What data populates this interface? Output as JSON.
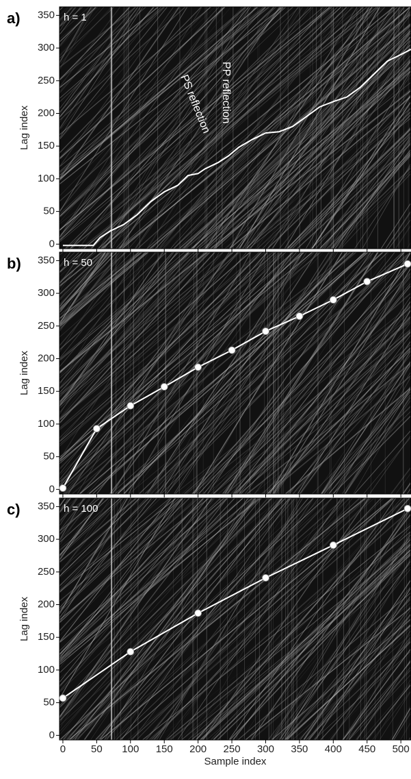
{
  "chart_data": [
    {
      "type": "line",
      "panel_label": "a)",
      "inset_label": "h = 1",
      "ylabel": "Lag index",
      "annotations": [
        "PS reflection",
        "PP reflection"
      ],
      "xlim": [
        -5,
        515
      ],
      "xticks": [
        0,
        50,
        100,
        150,
        200,
        250,
        300,
        350,
        400,
        450,
        500
      ],
      "ylim": [
        -7,
        363
      ],
      "yticks": [
        0,
        50,
        100,
        150,
        200,
        250,
        300,
        350
      ],
      "series": [
        {
          "color": "#ffffff",
          "markers": false,
          "x": [
            0,
            45,
            55,
            70,
            90,
            110,
            130,
            150,
            170,
            185,
            200,
            210,
            230,
            245,
            260,
            280,
            300,
            320,
            340,
            360,
            380,
            400,
            420,
            440,
            460,
            480,
            500,
            515
          ],
          "values": [
            -2,
            -2,
            10,
            20,
            30,
            45,
            65,
            80,
            90,
            105,
            108,
            115,
            125,
            135,
            148,
            160,
            170,
            172,
            180,
            195,
            210,
            218,
            225,
            240,
            260,
            280,
            290,
            298
          ]
        }
      ]
    },
    {
      "type": "line",
      "panel_label": "b)",
      "inset_label": "h = 50",
      "ylabel": "Lag index",
      "xlim": [
        -5,
        515
      ],
      "xticks": [
        0,
        50,
        100,
        150,
        200,
        250,
        300,
        350,
        400,
        450,
        500
      ],
      "ylim": [
        -7,
        363
      ],
      "yticks": [
        0,
        50,
        100,
        150,
        200,
        250,
        300,
        350
      ],
      "series": [
        {
          "color": "#ffffff",
          "markers": true,
          "x": [
            0,
            50,
            100,
            150,
            200,
            250,
            300,
            350,
            400,
            450,
            510
          ],
          "values": [
            2,
            93,
            128,
            157,
            187,
            213,
            242,
            265,
            290,
            318,
            345
          ]
        }
      ]
    },
    {
      "type": "line",
      "panel_label": "c)",
      "inset_label": "h = 100",
      "ylabel": "Lag index",
      "xlabel": "Sample index",
      "xlim": [
        -5,
        515
      ],
      "xticks": [
        0,
        50,
        100,
        150,
        200,
        250,
        300,
        350,
        400,
        450,
        500
      ],
      "ylim": [
        -7,
        363
      ],
      "yticks": [
        0,
        50,
        100,
        150,
        200,
        250,
        300,
        350
      ],
      "series": [
        {
          "color": "#ffffff",
          "markers": true,
          "x": [
            0,
            100,
            200,
            300,
            400,
            510
          ],
          "values": [
            57,
            128,
            187,
            241,
            291,
            347
          ]
        }
      ]
    }
  ]
}
